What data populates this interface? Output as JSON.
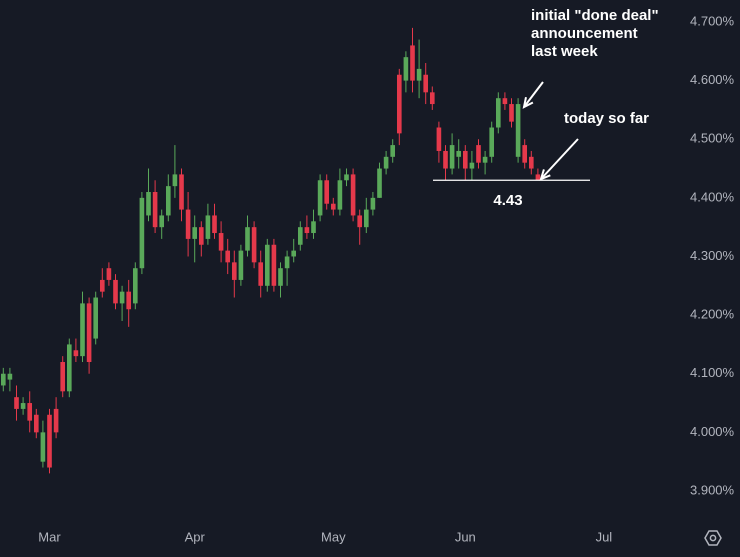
{
  "chart_data": {
    "type": "candlestick",
    "categories": [
      null,
      null,
      null,
      null,
      null,
      null,
      null,
      "Mar",
      null,
      null,
      null,
      null,
      null,
      null,
      null,
      null,
      null,
      null,
      null,
      null,
      null,
      null,
      null,
      null,
      null,
      null,
      null,
      null,
      null,
      "Apr",
      null,
      null,
      null,
      null,
      null,
      null,
      null,
      null,
      null,
      null,
      null,
      null,
      null,
      null,
      null,
      null,
      null,
      null,
      null,
      null,
      "May",
      null,
      null,
      null,
      null,
      null,
      null,
      null,
      null,
      null,
      null,
      null,
      null,
      null,
      null,
      null,
      null,
      null,
      null,
      null,
      "Jun",
      null,
      null,
      null,
      null,
      null,
      null,
      null,
      null,
      null,
      null,
      null,
      null,
      null,
      null,
      null,
      null,
      null,
      null,
      null,
      null,
      "Jul"
    ],
    "open": [
      4.08,
      4.09,
      4.06,
      4.04,
      4.05,
      4.03,
      3.95,
      4.03,
      4.04,
      4.12,
      4.07,
      4.14,
      4.13,
      4.22,
      4.16,
      4.26,
      4.28,
      4.26,
      4.22,
      4.24,
      4.22,
      4.28,
      4.37,
      4.41,
      4.35,
      4.37,
      4.42,
      4.44,
      4.38,
      4.33,
      4.35,
      4.33,
      4.37,
      4.34,
      4.31,
      4.29,
      4.26,
      4.31,
      4.35,
      4.29,
      4.25,
      4.32,
      4.25,
      4.28,
      4.3,
      4.32,
      4.35,
      4.34,
      4.37,
      4.43,
      4.39,
      4.38,
      4.43,
      4.44,
      4.37,
      4.35,
      4.38,
      4.4,
      4.45,
      4.47,
      4.61,
      4.6,
      4.66,
      4.6,
      4.61,
      4.58,
      4.52,
      4.48,
      4.45,
      4.47,
      4.48,
      4.45,
      4.49,
      4.46,
      4.47,
      4.52,
      4.57,
      4.56,
      4.47,
      4.49,
      4.47,
      4.44,
      null,
      null,
      null,
      null,
      null,
      null,
      null,
      null,
      null,
      null
    ],
    "high": [
      4.11,
      4.11,
      4.08,
      4.06,
      4.07,
      4.04,
      4.02,
      4.04,
      4.06,
      4.13,
      4.16,
      4.16,
      4.24,
      4.23,
      4.24,
      4.28,
      4.29,
      4.27,
      4.25,
      4.26,
      4.29,
      4.41,
      4.45,
      4.43,
      4.38,
      4.44,
      4.49,
      4.45,
      4.41,
      4.37,
      4.36,
      4.39,
      4.39,
      4.36,
      4.33,
      4.31,
      4.32,
      4.37,
      4.36,
      4.31,
      4.33,
      4.33,
      4.29,
      4.31,
      4.33,
      4.36,
      4.37,
      4.38,
      4.44,
      4.44,
      4.4,
      4.45,
      4.45,
      4.45,
      4.38,
      4.4,
      4.41,
      4.46,
      4.48,
      4.5,
      4.62,
      4.65,
      4.69,
      4.67,
      4.63,
      4.59,
      4.53,
      4.49,
      4.51,
      4.5,
      4.49,
      4.48,
      4.5,
      4.48,
      4.53,
      4.58,
      4.58,
      4.57,
      4.57,
      4.5,
      4.48,
      4.45,
      null,
      null,
      null,
      null,
      null,
      null,
      null,
      null,
      null,
      null
    ],
    "low": [
      4.07,
      4.07,
      4.02,
      4.03,
      4.0,
      3.99,
      3.94,
      3.93,
      3.99,
      4.06,
      4.06,
      4.12,
      4.12,
      4.1,
      4.15,
      4.23,
      4.25,
      4.21,
      4.19,
      4.18,
      4.21,
      4.27,
      4.36,
      4.34,
      4.33,
      4.36,
      4.4,
      4.36,
      4.3,
      4.29,
      4.3,
      4.32,
      4.33,
      4.29,
      4.27,
      4.23,
      4.25,
      4.3,
      4.28,
      4.23,
      4.24,
      4.24,
      4.23,
      4.25,
      4.29,
      4.31,
      4.33,
      4.33,
      4.36,
      4.38,
      4.37,
      4.37,
      4.42,
      4.36,
      4.32,
      4.34,
      4.37,
      4.4,
      4.44,
      4.46,
      4.49,
      4.58,
      4.58,
      4.57,
      4.56,
      4.55,
      4.46,
      4.43,
      4.44,
      4.45,
      4.43,
      4.43,
      4.45,
      4.44,
      4.46,
      4.51,
      4.55,
      4.52,
      4.46,
      4.45,
      4.44,
      4.43,
      null,
      null,
      null,
      null,
      null,
      null,
      null,
      null,
      null,
      null
    ],
    "close": [
      4.1,
      4.1,
      4.04,
      4.05,
      4.02,
      4.0,
      4.0,
      3.94,
      4.0,
      4.07,
      4.15,
      4.13,
      4.22,
      4.12,
      4.23,
      4.24,
      4.26,
      4.22,
      4.24,
      4.21,
      4.28,
      4.4,
      4.41,
      4.35,
      4.37,
      4.42,
      4.44,
      4.38,
      4.33,
      4.35,
      4.32,
      4.37,
      4.34,
      4.31,
      4.29,
      4.26,
      4.31,
      4.35,
      4.29,
      4.25,
      4.32,
      4.25,
      4.28,
      4.3,
      4.31,
      4.35,
      4.34,
      4.36,
      4.43,
      4.39,
      4.38,
      4.43,
      4.44,
      4.37,
      4.35,
      4.38,
      4.4,
      4.45,
      4.47,
      4.49,
      4.51,
      4.64,
      4.6,
      4.62,
      4.58,
      4.56,
      4.48,
      4.45,
      4.49,
      4.48,
      4.45,
      4.46,
      4.46,
      4.47,
      4.52,
      4.57,
      4.56,
      4.53,
      4.56,
      4.46,
      4.45,
      4.43,
      null,
      null,
      null,
      null,
      null,
      null,
      null,
      null,
      null,
      null
    ],
    "up_color": "#5aa95a",
    "down_color": "#e5394b",
    "ylim": [
      3.8505,
      4.7375
    ],
    "yticks": [
      {
        "value": 3.9,
        "label": "3.900%"
      },
      {
        "value": 4.0,
        "label": "4.000%"
      },
      {
        "value": 4.1,
        "label": "4.100%"
      },
      {
        "value": 4.2,
        "label": "4.200%"
      },
      {
        "value": 4.3,
        "label": "4.300%"
      },
      {
        "value": 4.4,
        "label": "4.400%"
      },
      {
        "value": 4.5,
        "label": "4.500%"
      },
      {
        "value": 4.6,
        "label": "4.600%"
      },
      {
        "value": 4.7,
        "label": "4.700%"
      }
    ],
    "grid": false,
    "hline": 4.43,
    "annotations": [
      {
        "lines": [
          "initial \"done deal\"",
          "announcement",
          "last week"
        ]
      },
      {
        "lines": [
          "today so far"
        ]
      }
    ]
  }
}
